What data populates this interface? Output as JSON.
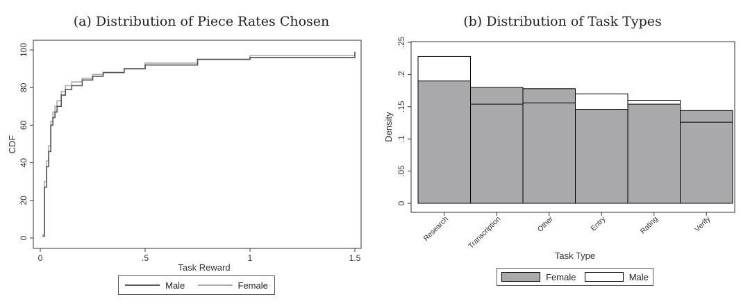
{
  "charts": [
    {
      "title": "(a) Distribution of Piece Rates Chosen",
      "chart_data": {
        "type": "line",
        "title": "(a) Distribution of Piece Rates Chosen",
        "xlabel": "Task Reward",
        "ylabel": "CDF",
        "xlim": [
          0,
          1.5
        ],
        "ylim": [
          0,
          100
        ],
        "xticks": [
          {
            "v": 0,
            "label": "0"
          },
          {
            "v": 0.5,
            "label": ".5"
          },
          {
            "v": 1,
            "label": "1"
          },
          {
            "v": 1.5,
            "label": "1.5"
          }
        ],
        "yticks": [
          {
            "v": 0,
            "label": "0"
          },
          {
            "v": 20,
            "label": "20"
          },
          {
            "v": 40,
            "label": "40"
          },
          {
            "v": 60,
            "label": "60"
          },
          {
            "v": 80,
            "label": "80"
          },
          {
            "v": 100,
            "label": "100"
          }
        ],
        "grid": false,
        "legend_position": "bottom",
        "series": [
          {
            "name": "Male",
            "color": "#555555",
            "x": [
              0.01,
              0.02,
              0.03,
              0.04,
              0.05,
              0.06,
              0.07,
              0.08,
              0.1,
              0.12,
              0.15,
              0.2,
              0.25,
              0.3,
              0.4,
              0.5,
              0.75,
              1.0,
              1.5
            ],
            "y": [
              1,
              27,
              38,
              46,
              60,
              64,
              67,
              70,
              76,
              79,
              81,
              84,
              86,
              88,
              90,
              92,
              95,
              96,
              99
            ]
          },
          {
            "name": "Female",
            "color": "#aaaaaa",
            "x": [
              0.01,
              0.02,
              0.03,
              0.04,
              0.05,
              0.06,
              0.07,
              0.08,
              0.1,
              0.12,
              0.15,
              0.2,
              0.25,
              0.3,
              0.4,
              0.5,
              0.75,
              1.0,
              1.5
            ],
            "y": [
              2,
              30,
              41,
              49,
              62,
              67,
              70,
              73,
              78,
              81,
              83,
              85,
              87,
              88,
              90,
              93,
              95,
              97,
              99
            ]
          }
        ]
      }
    },
    {
      "title": "(b) Distribution of Task Types",
      "chart_data": {
        "type": "bar",
        "title": "(b) Distribution of Task Types",
        "xlabel": "Task Type",
        "ylabel": "Density",
        "categories": [
          "Research",
          "Transcription",
          "Other",
          "Entry",
          "Rating",
          "Verify"
        ],
        "ylim": [
          0,
          0.25
        ],
        "yticks": [
          {
            "v": 0,
            "label": "0"
          },
          {
            "v": 0.05,
            "label": ".05"
          },
          {
            "v": 0.1,
            "label": ".1"
          },
          {
            "v": 0.15,
            "label": ".15"
          },
          {
            "v": 0.2,
            "label": ".2"
          },
          {
            "v": 0.25,
            "label": ".25"
          }
        ],
        "grid": false,
        "legend_position": "bottom",
        "series": [
          {
            "name": "Female",
            "color": "#a9a9ac",
            "values": [
              0.19,
              0.18,
              0.178,
              0.146,
              0.154,
              0.144
            ]
          },
          {
            "name": "Male",
            "color": "#ffffff",
            "values": [
              0.228,
              0.154,
              0.156,
              0.17,
              0.16,
              0.126
            ]
          }
        ]
      }
    }
  ]
}
